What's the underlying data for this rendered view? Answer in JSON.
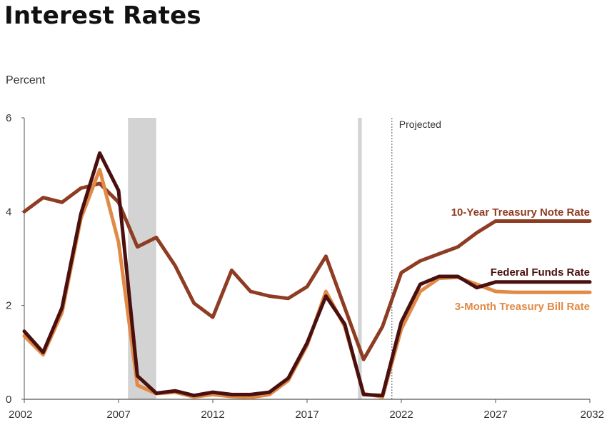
{
  "chart_data": {
    "type": "line",
    "title": "Interest Rates",
    "ylabel": "Percent",
    "xlabel": "",
    "xlim": [
      2002,
      2032
    ],
    "ylim": [
      0,
      6
    ],
    "xticks": [
      2002,
      2007,
      2012,
      2017,
      2022,
      2027,
      2032
    ],
    "yticks": [
      0,
      2,
      4,
      6
    ],
    "projected_label": "Projected",
    "projected_start": 2021.5,
    "recessions": [
      [
        2007.5,
        2009.0
      ],
      [
        2019.7,
        2019.9
      ]
    ],
    "series": [
      {
        "name": "10-Year Treasury Note Rate",
        "color": "#8e3c23",
        "x": [
          2002,
          2003,
          2004,
          2005,
          2006,
          2007,
          2008,
          2009,
          2010,
          2011,
          2012,
          2013,
          2014,
          2015,
          2016,
          2017,
          2018,
          2019,
          2020,
          2021,
          2022,
          2023,
          2024,
          2025,
          2026,
          2027,
          2028,
          2029,
          2030,
          2031,
          2032
        ],
        "values": [
          4.0,
          4.3,
          4.2,
          4.5,
          4.6,
          4.2,
          3.25,
          3.45,
          2.85,
          2.05,
          1.75,
          2.75,
          2.3,
          2.2,
          2.15,
          2.4,
          3.05,
          1.95,
          0.85,
          1.55,
          2.7,
          2.95,
          3.1,
          3.25,
          3.55,
          3.8,
          3.8,
          3.8,
          3.8,
          3.8,
          3.8
        ]
      },
      {
        "name": "Federal Funds Rate",
        "color": "#4a1010",
        "x": [
          2002,
          2003,
          2004,
          2005,
          2006,
          2007,
          2008,
          2009,
          2010,
          2011,
          2012,
          2013,
          2014,
          2015,
          2016,
          2017,
          2018,
          2019,
          2020,
          2021,
          2022,
          2023,
          2024,
          2025,
          2026,
          2027,
          2028,
          2029,
          2030,
          2031,
          2032
        ],
        "values": [
          1.45,
          1.0,
          1.95,
          3.95,
          5.25,
          4.45,
          0.5,
          0.13,
          0.18,
          0.08,
          0.15,
          0.1,
          0.1,
          0.15,
          0.45,
          1.2,
          2.2,
          1.6,
          0.1,
          0.08,
          1.65,
          2.45,
          2.62,
          2.62,
          2.38,
          2.5,
          2.5,
          2.5,
          2.5,
          2.5,
          2.5
        ]
      },
      {
        "name": "3-Month Treasury Bill Rate",
        "color": "#e08a45",
        "x": [
          2002,
          2003,
          2004,
          2005,
          2006,
          2007,
          2008,
          2009,
          2010,
          2011,
          2012,
          2013,
          2014,
          2015,
          2016,
          2017,
          2018,
          2019,
          2020,
          2021,
          2022,
          2023,
          2024,
          2025,
          2026,
          2027,
          2028,
          2029,
          2030,
          2031,
          2032
        ],
        "values": [
          1.35,
          0.95,
          1.85,
          3.85,
          4.9,
          3.35,
          0.3,
          0.12,
          0.15,
          0.05,
          0.1,
          0.06,
          0.04,
          0.1,
          0.4,
          1.15,
          2.3,
          1.55,
          0.12,
          0.05,
          1.5,
          2.3,
          2.58,
          2.6,
          2.45,
          2.3,
          2.28,
          2.28,
          2.28,
          2.28,
          2.28
        ]
      }
    ]
  }
}
